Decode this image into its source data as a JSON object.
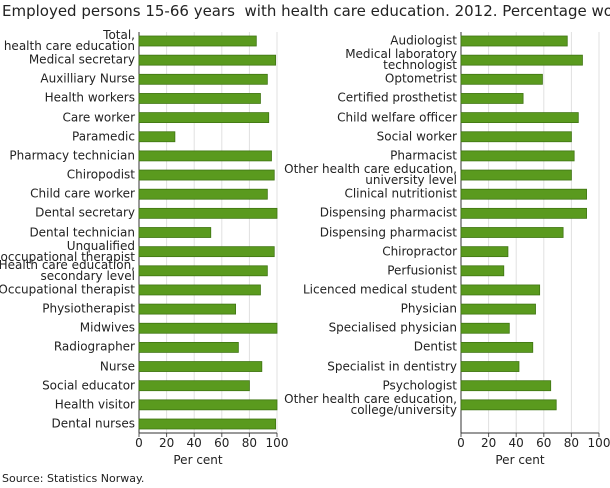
{
  "title": "Employed persons 15-66 years  with health care education. 2012. Percentage women",
  "source": "Source: Statistics Norway.",
  "chart_data": [
    {
      "type": "hbar",
      "x_label": "Per cent",
      "color": "#5a9a1e",
      "categories": [
        "Total,\nhealth care education",
        "Medical secretary",
        "Auxilliary Nurse",
        "Health workers",
        "Care worker",
        "Paramedic",
        "Pharmacy technician",
        "Chiropodist",
        "Child care worker",
        "Dental secretary",
        "Dental technician",
        "Unqualified\noccupational therapist",
        "Health care education,\nsecondary level",
        "Occupational therapist",
        "Physiotherapist",
        "Midwives",
        "Radiographer",
        "Nurse",
        "Social educator",
        "Health visitor",
        "Dental nurses"
      ],
      "values": [
        85,
        99,
        93,
        88,
        94,
        26,
        96,
        98,
        93,
        100,
        52,
        98,
        93,
        88,
        70,
        100,
        72,
        89,
        80,
        100,
        99
      ],
      "xlim": [
        0,
        100
      ],
      "xticks": [
        0,
        20,
        40,
        60,
        80,
        100
      ],
      "grid": true
    },
    {
      "type": "hbar",
      "x_label": "Per cent",
      "color": "#5a9a1e",
      "categories": [
        "Audiologist",
        "Medical laboratory\ntechnologist",
        "Optometrist",
        "Certified prosthetist",
        "Child welfare officer",
        "Social worker",
        "Pharmacist",
        "Other health care education,\nuniversity level",
        "Clinical nutritionist",
        "Dispensing pharmacist",
        "Dispensing pharmacist",
        "Chiropractor",
        "Perfusionist",
        "Licenced medical student",
        "Physician",
        "Specialised physician",
        "Dentist",
        "Specialist in dentistry",
        "Psychologist",
        "Other health care education,\ncollege/university"
      ],
      "values": [
        77,
        88,
        59,
        45,
        85,
        80,
        82,
        80,
        91,
        91,
        74,
        34,
        31,
        57,
        54,
        35,
        52,
        42,
        65,
        69
      ],
      "xlim": [
        0,
        100
      ],
      "xticks": [
        0,
        20,
        40,
        60,
        80,
        100
      ],
      "grid": true
    }
  ]
}
